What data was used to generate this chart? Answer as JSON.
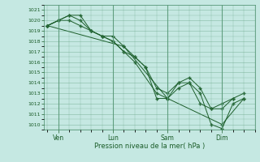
{
  "xlabel": "Pression niveau de la mer( hPa )",
  "bg_color": "#c5e8e2",
  "grid_color": "#5a9a7a",
  "line_color": "#1a5c28",
  "marker_color": "#1a5c28",
  "ylim": [
    1009.5,
    1021.5
  ],
  "yticks": [
    1010,
    1011,
    1012,
    1013,
    1014,
    1015,
    1016,
    1017,
    1018,
    1019,
    1020,
    1021
  ],
  "xlim": [
    -0.15,
    9.5
  ],
  "xtick_positions": [
    0.5,
    3.0,
    5.5,
    8.0
  ],
  "xtick_labels": [
    "Ven",
    "Lun",
    "Sam",
    "Dim"
  ],
  "series": [
    {
      "x": [
        0.0,
        0.5,
        1.0,
        1.5,
        2.0,
        2.5,
        3.0,
        3.5,
        4.0,
        4.5,
        5.0,
        5.5,
        6.0,
        6.5,
        7.0,
        7.5,
        8.0,
        8.5,
        9.0
      ],
      "y": [
        1019.5,
        1020.0,
        1020.0,
        1019.5,
        1019.0,
        1018.5,
        1018.0,
        1017.0,
        1016.5,
        1015.5,
        1013.5,
        1013.0,
        1014.0,
        1014.0,
        1013.0,
        1010.0,
        1009.6,
        1012.0,
        1012.5
      ]
    },
    {
      "x": [
        0.0,
        0.5,
        1.0,
        1.5,
        2.0,
        2.5,
        3.0,
        3.5,
        4.0,
        4.5,
        5.0,
        5.5,
        6.0,
        6.5,
        7.0,
        7.5,
        8.0,
        8.5,
        9.0
      ],
      "y": [
        1019.5,
        1020.0,
        1020.5,
        1020.5,
        1019.0,
        1018.5,
        1018.5,
        1017.5,
        1016.5,
        1015.5,
        1012.5,
        1012.5,
        1014.0,
        1014.5,
        1013.5,
        1011.5,
        1011.5,
        1012.5,
        1013.0
      ]
    },
    {
      "x": [
        0.0,
        0.5,
        1.0,
        1.5,
        2.0,
        2.5,
        3.0,
        3.5,
        4.0,
        5.0,
        5.5,
        6.0,
        6.5,
        7.0,
        7.5,
        8.0,
        8.5
      ],
      "y": [
        1019.5,
        1020.0,
        1020.5,
        1020.0,
        1019.0,
        1018.5,
        1018.0,
        1017.0,
        1016.0,
        1013.0,
        1012.5,
        1013.5,
        1014.0,
        1012.0,
        1011.5,
        1012.0,
        1012.5
      ]
    },
    {
      "x": [
        0.0,
        3.5,
        5.5,
        8.0,
        9.0
      ],
      "y": [
        1019.5,
        1017.5,
        1012.5,
        1010.0,
        1012.5
      ]
    }
  ]
}
